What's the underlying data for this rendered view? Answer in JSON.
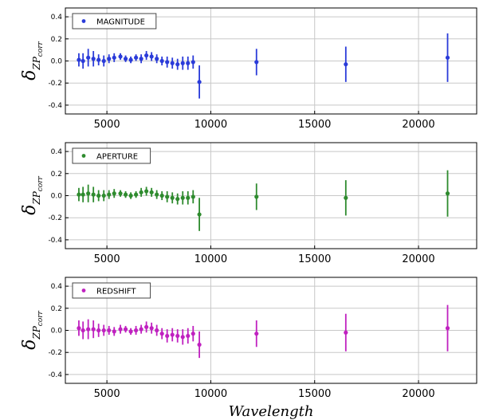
{
  "chart_data": [
    {
      "type": "scatter",
      "legend": "MAGNITUDE",
      "legend_position": "top-left",
      "color": "#2a3bd9",
      "ylabel": {
        "main": "δ",
        "sub": "ZP",
        "subsub": "corr"
      },
      "xlabel": "",
      "xlim": [
        3000,
        22800
      ],
      "ylim": [
        -0.48,
        0.48
      ],
      "xticks": [
        5000,
        10000,
        15000,
        20000
      ],
      "yticks": [
        0.4,
        0.2,
        0.0,
        -0.2,
        -0.4
      ],
      "ytick_labels": [
        "0.4",
        "0.2",
        "0.0",
        "-0.2",
        "-0.4"
      ],
      "grid": true,
      "series": [
        {
          "x": [
            3650,
            3850,
            4100,
            4350,
            4600,
            4850,
            5100,
            5350,
            5650,
            5900,
            6150,
            6400,
            6650,
            6900,
            7150,
            7400,
            7650,
            7900,
            8150,
            8400,
            8650,
            8900,
            9150,
            9450,
            12200,
            16500,
            21400
          ],
          "y": [
            0.01,
            0.0,
            0.03,
            0.02,
            0.01,
            0.0,
            0.02,
            0.03,
            0.04,
            0.02,
            0.01,
            0.03,
            0.02,
            0.05,
            0.04,
            0.02,
            0.0,
            -0.01,
            -0.02,
            -0.03,
            -0.02,
            -0.02,
            -0.01,
            -0.19,
            -0.01,
            -0.03,
            0.03
          ],
          "err": [
            0.06,
            0.07,
            0.08,
            0.07,
            0.05,
            0.05,
            0.04,
            0.04,
            0.03,
            0.03,
            0.03,
            0.03,
            0.04,
            0.04,
            0.04,
            0.04,
            0.04,
            0.05,
            0.05,
            0.05,
            0.06,
            0.06,
            0.06,
            0.15,
            0.12,
            0.16,
            0.22
          ]
        }
      ]
    },
    {
      "type": "scatter",
      "legend": "APERTURE",
      "legend_position": "top-left",
      "color": "#2e8b2e",
      "ylabel": {
        "main": "δ",
        "sub": "ZP",
        "subsub": "corr"
      },
      "xlabel": "",
      "xlim": [
        3000,
        22800
      ],
      "ylim": [
        -0.48,
        0.48
      ],
      "xticks": [
        5000,
        10000,
        15000,
        20000
      ],
      "yticks": [
        0.4,
        0.2,
        0.0,
        -0.2,
        -0.4
      ],
      "ytick_labels": [
        "0.4",
        "0.2",
        "0.0",
        "-0.2",
        "-0.4"
      ],
      "grid": true,
      "series": [
        {
          "x": [
            3650,
            3850,
            4100,
            4350,
            4600,
            4850,
            5100,
            5350,
            5650,
            5900,
            6150,
            6400,
            6650,
            6900,
            7150,
            7400,
            7650,
            7900,
            8150,
            8400,
            8650,
            8900,
            9150,
            9450,
            12200,
            16500,
            21400
          ],
          "y": [
            0.01,
            0.01,
            0.02,
            0.01,
            0.0,
            0.0,
            0.01,
            0.02,
            0.02,
            0.01,
            0.0,
            0.01,
            0.03,
            0.04,
            0.03,
            0.01,
            0.0,
            -0.01,
            -0.02,
            -0.03,
            -0.02,
            -0.02,
            -0.01,
            -0.17,
            -0.01,
            -0.02,
            0.02
          ],
          "err": [
            0.06,
            0.07,
            0.08,
            0.07,
            0.05,
            0.05,
            0.04,
            0.04,
            0.03,
            0.03,
            0.03,
            0.03,
            0.04,
            0.04,
            0.04,
            0.04,
            0.04,
            0.05,
            0.05,
            0.05,
            0.06,
            0.06,
            0.06,
            0.15,
            0.12,
            0.16,
            0.21
          ]
        }
      ]
    },
    {
      "type": "scatter",
      "legend": "REDSHIFT",
      "legend_position": "top-left",
      "color": "#c021c0",
      "ylabel": {
        "main": "δ",
        "sub": "ZP",
        "subsub": "corr"
      },
      "xlabel": "Wavelength",
      "xlim": [
        3000,
        22800
      ],
      "ylim": [
        -0.48,
        0.48
      ],
      "xticks": [
        5000,
        10000,
        15000,
        20000
      ],
      "yticks": [
        0.4,
        0.2,
        0.0,
        -0.2,
        -0.4
      ],
      "ytick_labels": [
        "0.4",
        "0.2",
        "0.0",
        "-0.2",
        "-0.4"
      ],
      "grid": true,
      "series": [
        {
          "x": [
            3650,
            3850,
            4100,
            4350,
            4600,
            4850,
            5100,
            5350,
            5650,
            5900,
            6150,
            6400,
            6650,
            6900,
            7150,
            7400,
            7650,
            7900,
            8150,
            8400,
            8650,
            8900,
            9150,
            9450,
            12200,
            16500,
            21400
          ],
          "y": [
            0.02,
            0.0,
            0.01,
            0.01,
            0.0,
            0.0,
            0.0,
            -0.01,
            0.01,
            0.01,
            -0.01,
            0.0,
            0.01,
            0.03,
            0.02,
            0.0,
            -0.03,
            -0.05,
            -0.04,
            -0.05,
            -0.06,
            -0.05,
            -0.03,
            -0.13,
            -0.03,
            -0.02,
            0.02
          ],
          "err": [
            0.07,
            0.08,
            0.09,
            0.08,
            0.06,
            0.05,
            0.04,
            0.04,
            0.04,
            0.03,
            0.03,
            0.04,
            0.04,
            0.05,
            0.05,
            0.05,
            0.05,
            0.06,
            0.06,
            0.06,
            0.07,
            0.07,
            0.07,
            0.12,
            0.12,
            0.17,
            0.21
          ]
        }
      ]
    }
  ]
}
